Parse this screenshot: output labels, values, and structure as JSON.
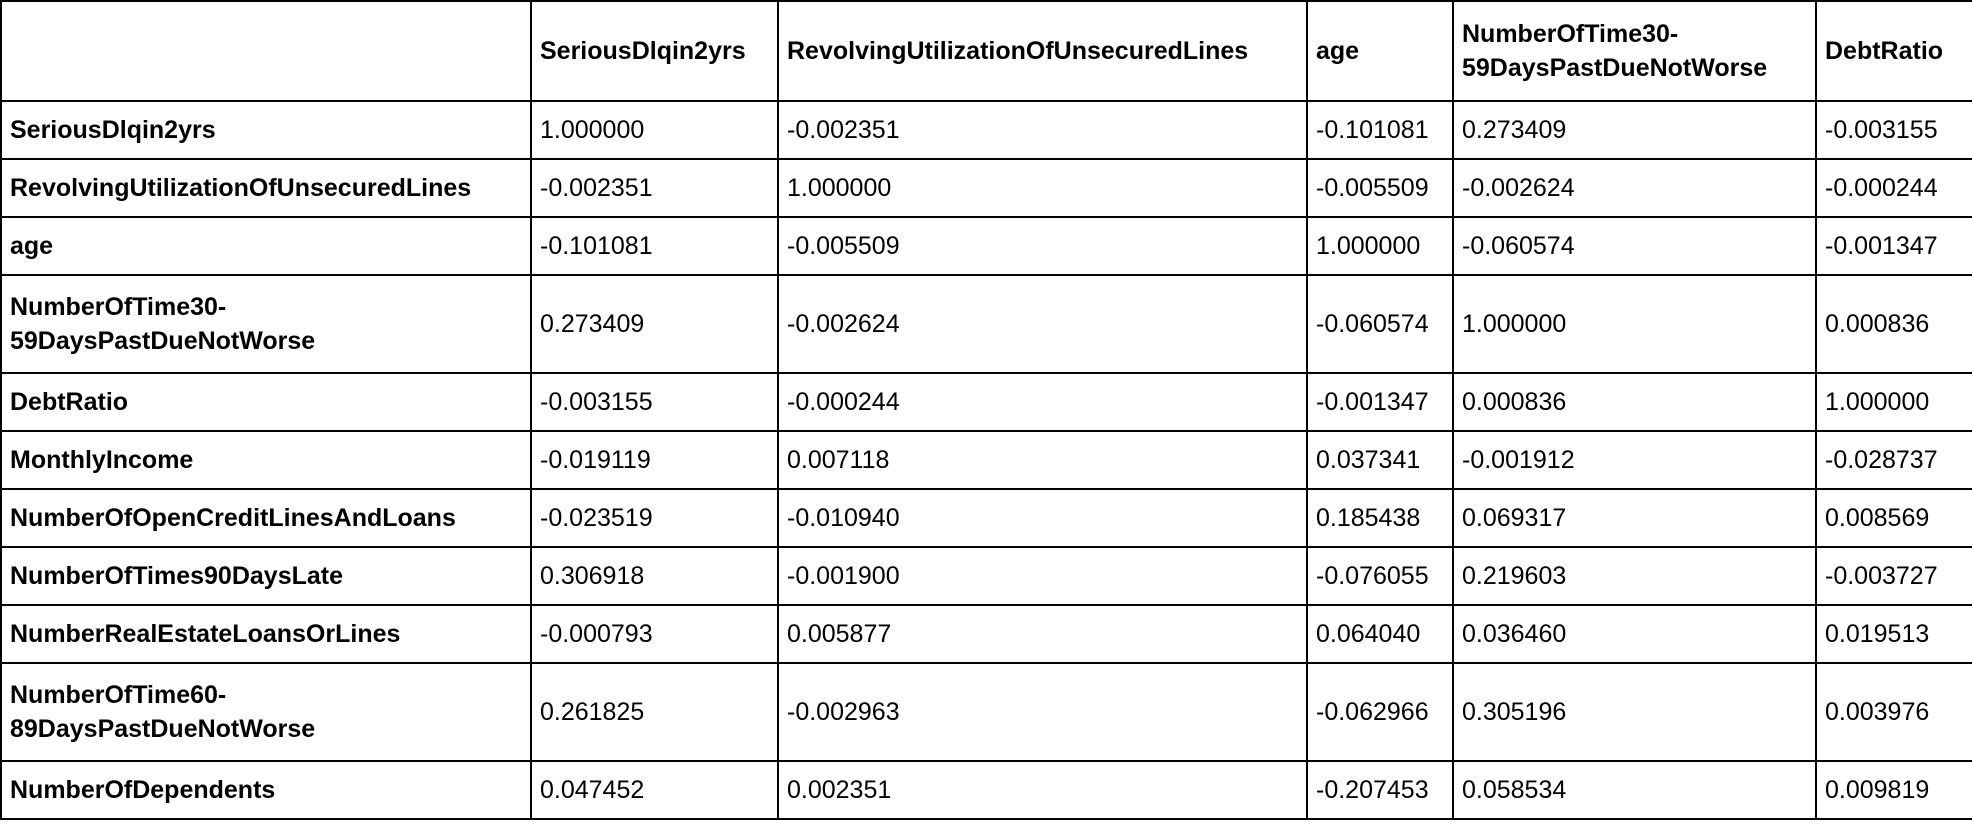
{
  "table": {
    "columns": [
      "",
      "SeriousDlqin2yrs",
      "RevolvingUtilizationOfUnsecuredLines",
      "age",
      "NumberOfTime30-59DaysPastDueNotWorse",
      "DebtRatio"
    ],
    "rows": [
      {
        "label": "SeriousDlqin2yrs",
        "values": [
          "1.000000",
          "-0.002351",
          "-0.101081",
          "0.273409",
          "-0.003155"
        ]
      },
      {
        "label": "RevolvingUtilizationOfUnsecuredLines",
        "values": [
          "-0.002351",
          "1.000000",
          "-0.005509",
          "-0.002624",
          "-0.000244"
        ]
      },
      {
        "label": "age",
        "values": [
          "-0.101081",
          "-0.005509",
          "1.000000",
          "-0.060574",
          "-0.001347"
        ]
      },
      {
        "label": "NumberOfTime30-59DaysPastDueNotWorse",
        "values": [
          "0.273409",
          "-0.002624",
          "-0.060574",
          "1.000000",
          "0.000836"
        ]
      },
      {
        "label": "DebtRatio",
        "values": [
          "-0.003155",
          "-0.000244",
          "-0.001347",
          "0.000836",
          "1.000000"
        ]
      },
      {
        "label": "MonthlyIncome",
        "values": [
          "-0.019119",
          "0.007118",
          "0.037341",
          "-0.001912",
          "-0.028737"
        ]
      },
      {
        "label": "NumberOfOpenCreditLinesAndLoans",
        "values": [
          "-0.023519",
          "-0.010940",
          "0.185438",
          "0.069317",
          "0.008569"
        ]
      },
      {
        "label": "NumberOfTimes90DaysLate",
        "values": [
          "0.306918",
          "-0.001900",
          "-0.076055",
          "0.219603",
          "-0.003727"
        ]
      },
      {
        "label": "NumberRealEstateLoansOrLines",
        "values": [
          "-0.000793",
          "0.005877",
          "0.064040",
          "0.036460",
          "0.019513"
        ]
      },
      {
        "label": "NumberOfTime60-89DaysPastDueNotWorse",
        "values": [
          "0.261825",
          "-0.002963",
          "-0.062966",
          "0.305196",
          "0.003976"
        ]
      },
      {
        "label": "NumberOfDependents",
        "values": [
          "0.047452",
          "0.002351",
          "-0.207453",
          "0.058534",
          "0.009819"
        ]
      }
    ]
  }
}
